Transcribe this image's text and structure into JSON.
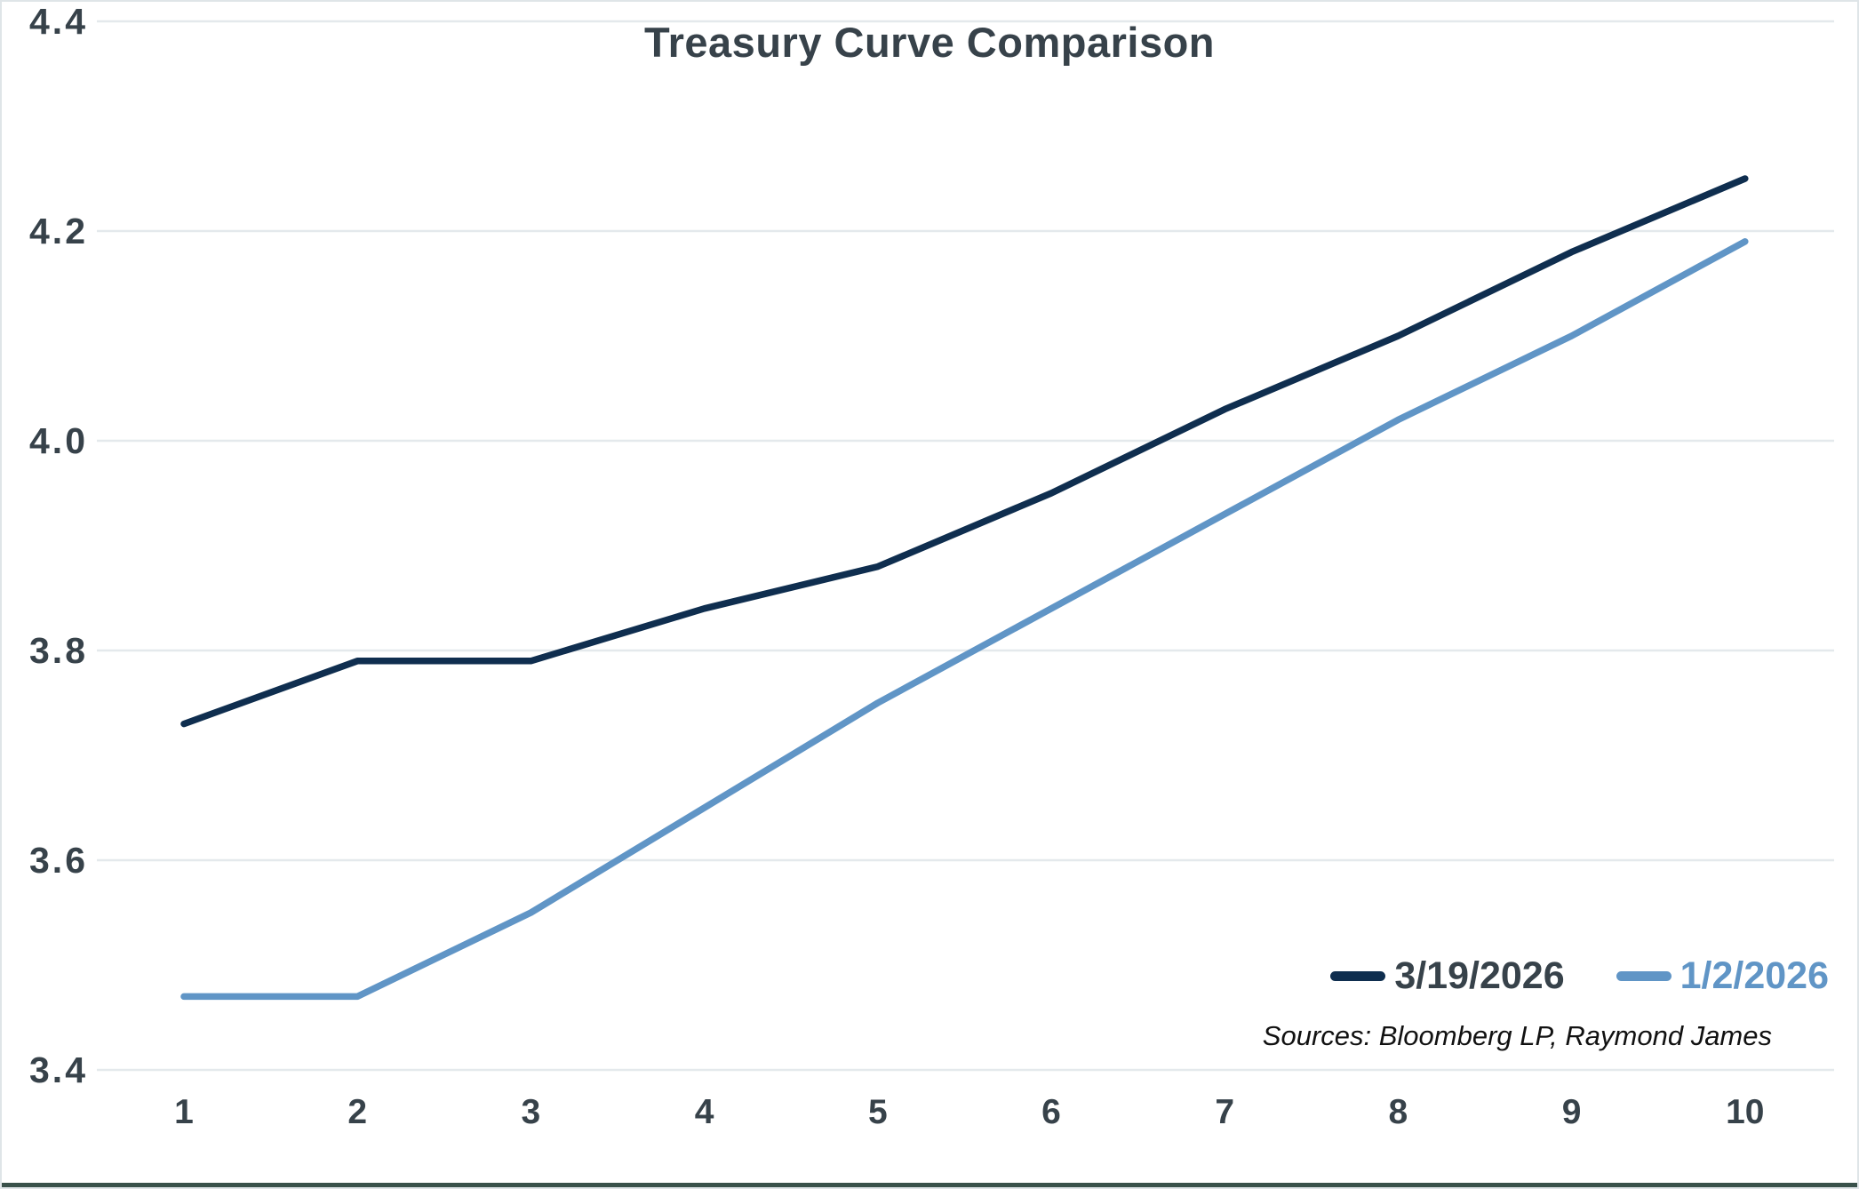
{
  "chart": {
    "title": "Treasury Curve Comparison",
    "sources": "Sources: Bloomberg LP, Raymond James"
  },
  "chart_data": {
    "type": "line",
    "title": "Treasury Curve Comparison",
    "x": [
      1,
      2,
      3,
      4,
      5,
      6,
      7,
      8,
      9,
      10
    ],
    "series": [
      {
        "name": "3/19/2026",
        "color": "#0f2e4f",
        "label_color": "#37424a",
        "values": [
          3.73,
          3.79,
          3.79,
          3.84,
          3.88,
          3.95,
          4.03,
          4.1,
          4.18,
          4.25
        ]
      },
      {
        "name": "1/2/2026",
        "color": "#6095c6",
        "label_color": "#6095c6",
        "values": [
          3.47,
          3.47,
          3.55,
          3.65,
          3.75,
          3.84,
          3.93,
          4.02,
          4.1,
          4.19
        ]
      }
    ],
    "xlabel": "",
    "ylabel": "",
    "xticks": [
      "1",
      "2",
      "3",
      "4",
      "5",
      "6",
      "7",
      "8",
      "9",
      "10"
    ],
    "yticks": [
      "3.4",
      "3.6",
      "3.8",
      "4.0",
      "4.2",
      "4.4"
    ],
    "ylim": [
      3.4,
      4.4
    ],
    "xlim": [
      1,
      10
    ],
    "grid": "horizontal-only",
    "legend_position": "bottom-right",
    "annotations": [
      "Sources: Bloomberg LP, Raymond James"
    ],
    "colors": {
      "axis_text": "#37424a",
      "gridline": "#e4e9ec",
      "background": "#ffffff",
      "frame_border": "#dfe5e8",
      "bottom_edge": "#39514a"
    }
  }
}
